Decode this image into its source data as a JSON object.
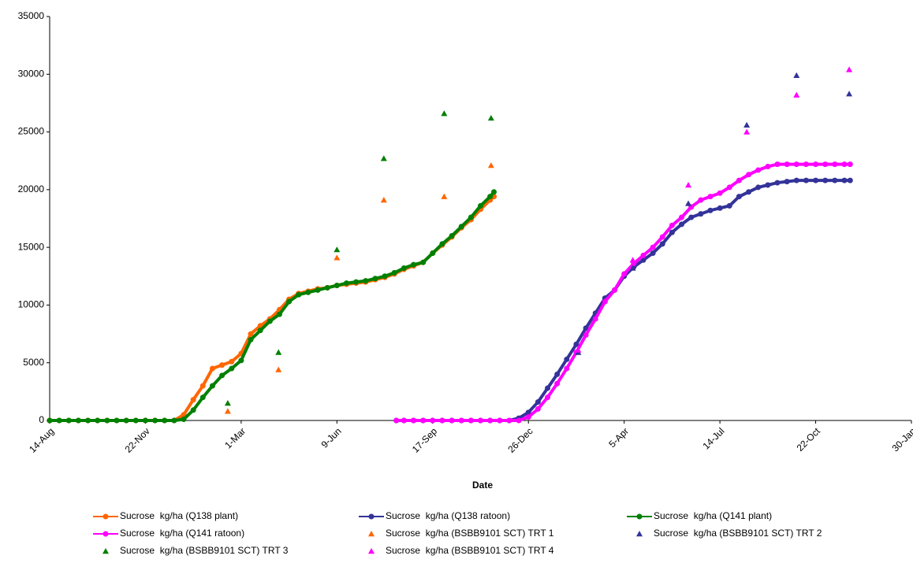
{
  "chart_data": {
    "type": "line",
    "xlabel": "Date",
    "xlim": [
      0,
      900
    ],
    "xticks": [
      {
        "value": 0,
        "label": "14-Aug"
      },
      {
        "value": 100,
        "label": "22-Nov"
      },
      {
        "value": 200,
        "label": "1-Mar"
      },
      {
        "value": 300,
        "label": "9-Jun"
      },
      {
        "value": 400,
        "label": "17-Sep"
      },
      {
        "value": 500,
        "label": "26-Dec"
      },
      {
        "value": 600,
        "label": "5-Apr"
      },
      {
        "value": 700,
        "label": "14-Jul"
      },
      {
        "value": 800,
        "label": "22-Oct"
      },
      {
        "value": 900,
        "label": "30-Jan"
      }
    ],
    "ylim": [
      0,
      35000
    ],
    "yticks": [
      0,
      5000,
      10000,
      15000,
      20000,
      25000,
      30000,
      35000
    ],
    "series": [
      {
        "name": "Sucrose  kg/ha (Q138 plant)",
        "type": "line",
        "color": "#ff6600",
        "x": [
          0,
          10,
          20,
          30,
          40,
          50,
          60,
          70,
          80,
          90,
          100,
          110,
          120,
          130,
          140,
          150,
          160,
          170,
          180,
          190,
          200,
          210,
          220,
          230,
          240,
          250,
          260,
          270,
          280,
          290,
          300,
          310,
          320,
          330,
          340,
          350,
          360,
          370,
          380,
          390,
          400,
          410,
          420,
          430,
          440,
          450,
          460,
          464
        ],
        "values": [
          0,
          0,
          0,
          0,
          0,
          0,
          0,
          0,
          0,
          0,
          0,
          0,
          0,
          0,
          500,
          1800,
          3000,
          4500,
          4800,
          5100,
          5800,
          7500,
          8200,
          8800,
          9600,
          10500,
          11000,
          11200,
          11400,
          11500,
          11700,
          11800,
          11900,
          12000,
          12200,
          12400,
          12700,
          13100,
          13400,
          13700,
          14500,
          15200,
          15900,
          16700,
          17400,
          18300,
          19100,
          19400
        ]
      },
      {
        "name": "Sucrose  kg/ha (Q138 ratoon)",
        "type": "line",
        "color": "#333399",
        "x": [
          362,
          370,
          380,
          390,
          400,
          410,
          420,
          430,
          440,
          450,
          460,
          470,
          480,
          490,
          500,
          510,
          520,
          530,
          540,
          550,
          560,
          570,
          580,
          590,
          600,
          610,
          620,
          630,
          640,
          650,
          660,
          670,
          680,
          690,
          700,
          710,
          720,
          730,
          740,
          750,
          760,
          770,
          780,
          790,
          800,
          810,
          820,
          830,
          836
        ],
        "values": [
          0,
          0,
          0,
          0,
          0,
          0,
          0,
          0,
          0,
          0,
          0,
          0,
          0,
          200,
          700,
          1600,
          2800,
          4000,
          5300,
          6600,
          8000,
          9300,
          10600,
          11300,
          12500,
          13300,
          13900,
          14500,
          15300,
          16300,
          17000,
          17600,
          17900,
          18200,
          18400,
          18600,
          19400,
          19800,
          20200,
          20400,
          20600,
          20700,
          20800,
          20800,
          20800,
          20800,
          20800,
          20800,
          20800
        ]
      },
      {
        "name": "Sucrose  kg/ha (Q141 plant)",
        "type": "line",
        "color": "#008000",
        "x": [
          0,
          10,
          20,
          30,
          40,
          50,
          60,
          70,
          80,
          90,
          100,
          110,
          120,
          130,
          140,
          150,
          160,
          170,
          180,
          190,
          200,
          210,
          220,
          230,
          240,
          250,
          260,
          270,
          280,
          290,
          300,
          310,
          320,
          330,
          340,
          350,
          360,
          370,
          380,
          390,
          400,
          410,
          420,
          430,
          440,
          450,
          460,
          464
        ],
        "values": [
          0,
          0,
          0,
          0,
          0,
          0,
          0,
          0,
          0,
          0,
          0,
          0,
          0,
          0,
          100,
          900,
          2000,
          3000,
          3900,
          4500,
          5200,
          7000,
          7800,
          8600,
          9200,
          10300,
          10900,
          11100,
          11300,
          11500,
          11700,
          11900,
          12000,
          12100,
          12300,
          12500,
          12800,
          13200,
          13500,
          13700,
          14500,
          15300,
          16000,
          16800,
          17600,
          18600,
          19400,
          19800
        ]
      },
      {
        "name": "Sucrose  kg/ha (Q141 ratoon)",
        "type": "line",
        "color": "#ff00ff",
        "x": [
          362,
          370,
          380,
          390,
          400,
          410,
          420,
          430,
          440,
          450,
          460,
          470,
          480,
          490,
          500,
          510,
          520,
          530,
          540,
          550,
          560,
          570,
          580,
          590,
          600,
          610,
          620,
          630,
          640,
          650,
          660,
          670,
          680,
          690,
          700,
          710,
          720,
          730,
          740,
          750,
          760,
          770,
          780,
          790,
          800,
          810,
          820,
          830,
          836
        ],
        "values": [
          0,
          0,
          0,
          0,
          0,
          0,
          0,
          0,
          0,
          0,
          0,
          0,
          0,
          0,
          300,
          1000,
          2000,
          3200,
          4500,
          5900,
          7400,
          8800,
          10300,
          11300,
          12700,
          13600,
          14300,
          15000,
          15900,
          16900,
          17600,
          18500,
          19100,
          19400,
          19700,
          20200,
          20800,
          21300,
          21700,
          22000,
          22200,
          22200,
          22200,
          22200,
          22200,
          22200,
          22200,
          22200,
          22200
        ]
      },
      {
        "name": "Sucrose  kg/ha (BSBB9101 SCT) TRT 1",
        "type": "scatter",
        "color": "#ff6600",
        "x": [
          186,
          239,
          300,
          349,
          412,
          461
        ],
        "values": [
          800,
          4400,
          14100,
          19100,
          19400,
          22100
        ]
      },
      {
        "name": "Sucrose  kg/ha (BSBB9101 SCT) TRT 2",
        "type": "scatter",
        "color": "#333399",
        "x": [
          552,
          609,
          667,
          728,
          780,
          835
        ],
        "values": [
          5900,
          13200,
          18800,
          25600,
          29900,
          28300
        ]
      },
      {
        "name": "Sucrose  kg/ha (BSBB9101 SCT) TRT 3",
        "type": "scatter",
        "color": "#008000",
        "x": [
          186,
          239,
          300,
          349,
          412,
          461
        ],
        "values": [
          1500,
          5900,
          14800,
          22700,
          26600,
          26200
        ]
      },
      {
        "name": "Sucrose  kg/ha (BSBB9101 SCT) TRT 4",
        "type": "scatter",
        "color": "#ff00ff",
        "x": [
          552,
          609,
          667,
          728,
          780,
          835
        ],
        "values": [
          6100,
          13900,
          20400,
          25000,
          28200,
          30400
        ]
      }
    ]
  }
}
